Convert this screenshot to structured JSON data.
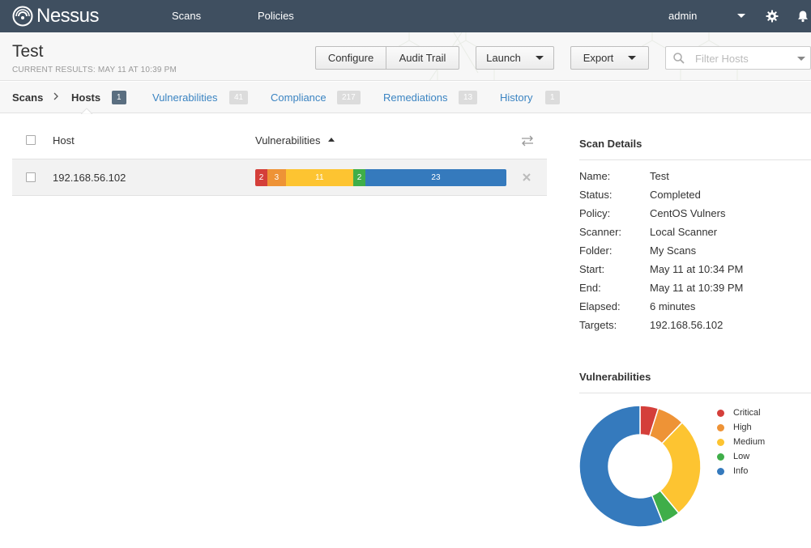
{
  "app": {
    "name": "Nessus",
    "nav": [
      "Scans",
      "Policies"
    ],
    "user": "admin"
  },
  "header": {
    "title": "Test",
    "subtitle": "CURRENT RESULTS: MAY 11 AT 10:39 PM",
    "buttons": {
      "configure": "Configure",
      "audit_trail": "Audit Trail",
      "launch": "Launch",
      "export": "Export"
    },
    "filter_placeholder": "Filter Hosts"
  },
  "tabs": {
    "scans": "Scans",
    "hosts": {
      "label": "Hosts",
      "count": "1"
    },
    "vulnerabilities": {
      "label": "Vulnerabilities",
      "count": "41"
    },
    "compliance": {
      "label": "Compliance",
      "count": "217"
    },
    "remediations": {
      "label": "Remediations",
      "count": "13"
    },
    "history": {
      "label": "History",
      "count": "1"
    }
  },
  "table": {
    "columns": [
      "Host",
      "Vulnerabilities"
    ],
    "rows": [
      {
        "host": "192.168.56.102",
        "critical": 2,
        "high": 3,
        "medium": 11,
        "low": 2,
        "info": 23
      }
    ]
  },
  "scan_details": {
    "title": "Scan Details",
    "fields": [
      {
        "label": "Name:",
        "value": "Test"
      },
      {
        "label": "Status:",
        "value": "Completed"
      },
      {
        "label": "Policy:",
        "value": "CentOS Vulners"
      },
      {
        "label": "Scanner:",
        "value": "Local Scanner"
      },
      {
        "label": "Folder:",
        "value": "My Scans"
      },
      {
        "label": "Start:",
        "value": "May 11 at 10:34 PM"
      },
      {
        "label": "End:",
        "value": "May 11 at 10:39 PM"
      },
      {
        "label": "Elapsed:",
        "value": "6 minutes"
      },
      {
        "label": "Targets:",
        "value": "192.168.56.102"
      }
    ]
  },
  "chart_data": {
    "type": "pie",
    "title": "Vulnerabilities",
    "categories": [
      "Critical",
      "High",
      "Medium",
      "Low",
      "Info"
    ],
    "values": [
      2,
      3,
      11,
      2,
      23
    ],
    "legend_position": "right"
  },
  "colors": {
    "critical": "#d43f3a",
    "high": "#ee9336",
    "medium": "#fdc431",
    "low": "#3fae49",
    "info": "#357abd",
    "topbar": "#3f4f60",
    "link": "#3b84c2"
  }
}
